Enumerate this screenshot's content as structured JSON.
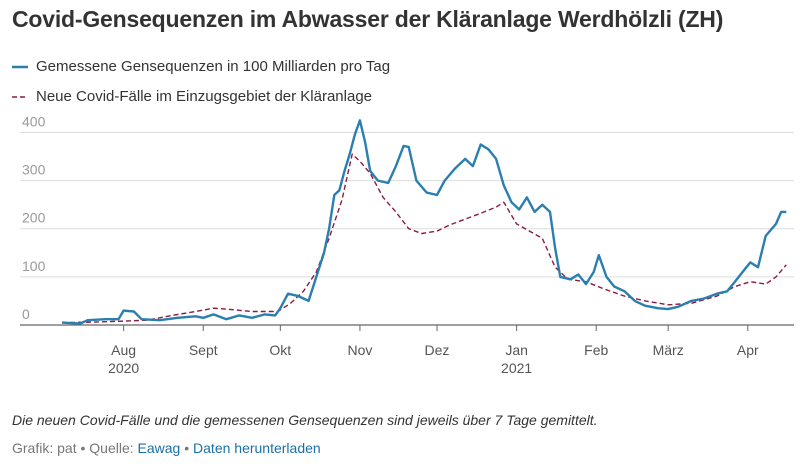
{
  "header": {
    "title": "Covid-Gensequenzen im Abwasser der Kläranlage Werdhölzli (ZH)"
  },
  "legend": [
    {
      "label": "Gemessene Gensequenzen in 100 Milliarden pro Tag",
      "color": "#2a7fb0",
      "style": "solid"
    },
    {
      "label": "Neue Covid-Fälle im Einzugsgebiet der Kläranlage",
      "color": "#8b1c3f",
      "style": "dashed"
    }
  ],
  "footer": {
    "note": "Die neuen Covid-Fälle und die gemessenen Gensequenzen sind jeweils über 7 Tage gemittelt.",
    "credit": "Grafik: pat",
    "source_label": "Quelle:",
    "source_name": "Eawag",
    "download_label": "Daten herunterladen",
    "separator": "•"
  },
  "chart_data": {
    "type": "line",
    "x_axis": "date",
    "xlim": [
      "2020-07-08",
      "2021-04-19"
    ],
    "ylim": [
      0,
      430
    ],
    "y_ticks": [
      0,
      100,
      200,
      300,
      400
    ],
    "x_ticks": [
      {
        "date": "2020-08-01",
        "label": "Aug",
        "sublabel": "2020"
      },
      {
        "date": "2020-09-01",
        "label": "Sept",
        "sublabel": ""
      },
      {
        "date": "2020-10-01",
        "label": "Okt",
        "sublabel": ""
      },
      {
        "date": "2020-11-01",
        "label": "Nov",
        "sublabel": ""
      },
      {
        "date": "2020-12-01",
        "label": "Dez",
        "sublabel": ""
      },
      {
        "date": "2021-01-01",
        "label": "Jan",
        "sublabel": "2021"
      },
      {
        "date": "2021-02-01",
        "label": "Feb",
        "sublabel": ""
      },
      {
        "date": "2021-03-01",
        "label": "März",
        "sublabel": ""
      },
      {
        "date": "2021-04-01",
        "label": "Apr",
        "sublabel": ""
      }
    ],
    "grid": "horizontal",
    "series": [
      {
        "name": "Gemessene Gensequenzen in 100 Milliarden pro Tag",
        "color": "#2a7fb0",
        "style": "solid",
        "points": [
          [
            "2020-07-08",
            5
          ],
          [
            "2020-07-15",
            3
          ],
          [
            "2020-07-18",
            10
          ],
          [
            "2020-07-25",
            12
          ],
          [
            "2020-07-30",
            12
          ],
          [
            "2020-08-01",
            30
          ],
          [
            "2020-08-05",
            28
          ],
          [
            "2020-08-08",
            12
          ],
          [
            "2020-08-15",
            10
          ],
          [
            "2020-08-22",
            15
          ],
          [
            "2020-08-29",
            18
          ],
          [
            "2020-09-01",
            15
          ],
          [
            "2020-09-05",
            22
          ],
          [
            "2020-09-10",
            12
          ],
          [
            "2020-09-15",
            20
          ],
          [
            "2020-09-20",
            15
          ],
          [
            "2020-09-25",
            22
          ],
          [
            "2020-09-29",
            20
          ],
          [
            "2020-10-01",
            35
          ],
          [
            "2020-10-04",
            65
          ],
          [
            "2020-10-08",
            60
          ],
          [
            "2020-10-12",
            50
          ],
          [
            "2020-10-15",
            100
          ],
          [
            "2020-10-18",
            150
          ],
          [
            "2020-10-20",
            200
          ],
          [
            "2020-10-22",
            270
          ],
          [
            "2020-10-24",
            280
          ],
          [
            "2020-10-26",
            320
          ],
          [
            "2020-10-28",
            355
          ],
          [
            "2020-10-30",
            395
          ],
          [
            "2020-11-01",
            425
          ],
          [
            "2020-11-03",
            380
          ],
          [
            "2020-11-05",
            320
          ],
          [
            "2020-11-08",
            300
          ],
          [
            "2020-11-12",
            295
          ],
          [
            "2020-11-15",
            330
          ],
          [
            "2020-11-18",
            372
          ],
          [
            "2020-11-20",
            370
          ],
          [
            "2020-11-23",
            300
          ],
          [
            "2020-11-27",
            275
          ],
          [
            "2020-12-01",
            270
          ],
          [
            "2020-12-04",
            300
          ],
          [
            "2020-12-08",
            325
          ],
          [
            "2020-12-12",
            345
          ],
          [
            "2020-12-15",
            330
          ],
          [
            "2020-12-18",
            375
          ],
          [
            "2020-12-21",
            365
          ],
          [
            "2020-12-24",
            345
          ],
          [
            "2020-12-27",
            290
          ],
          [
            "2020-12-30",
            255
          ],
          [
            "2021-01-02",
            240
          ],
          [
            "2021-01-05",
            265
          ],
          [
            "2021-01-08",
            235
          ],
          [
            "2021-01-11",
            250
          ],
          [
            "2021-01-14",
            235
          ],
          [
            "2021-01-16",
            160
          ],
          [
            "2021-01-18",
            100
          ],
          [
            "2021-01-22",
            95
          ],
          [
            "2021-01-25",
            105
          ],
          [
            "2021-01-28",
            85
          ],
          [
            "2021-01-31",
            110
          ],
          [
            "2021-02-02",
            145
          ],
          [
            "2021-02-05",
            100
          ],
          [
            "2021-02-08",
            80
          ],
          [
            "2021-02-12",
            70
          ],
          [
            "2021-02-16",
            50
          ],
          [
            "2021-02-20",
            40
          ],
          [
            "2021-02-25",
            35
          ],
          [
            "2021-03-01",
            33
          ],
          [
            "2021-03-05",
            38
          ],
          [
            "2021-03-10",
            50
          ],
          [
            "2021-03-15",
            55
          ],
          [
            "2021-03-20",
            65
          ],
          [
            "2021-03-24",
            70
          ],
          [
            "2021-03-27",
            90
          ],
          [
            "2021-03-30",
            110
          ],
          [
            "2021-04-02",
            130
          ],
          [
            "2021-04-05",
            120
          ],
          [
            "2021-04-08",
            185
          ],
          [
            "2021-04-12",
            210
          ],
          [
            "2021-04-14",
            235
          ],
          [
            "2021-04-16",
            235
          ]
        ]
      },
      {
        "name": "Neue Covid-Fälle im Einzugsgebiet der Kläranlage",
        "color": "#8b1c3f",
        "style": "dashed",
        "points": [
          [
            "2020-07-08",
            5
          ],
          [
            "2020-07-20",
            6
          ],
          [
            "2020-08-01",
            8
          ],
          [
            "2020-08-10",
            10
          ],
          [
            "2020-08-20",
            20
          ],
          [
            "2020-08-31",
            30
          ],
          [
            "2020-09-05",
            35
          ],
          [
            "2020-09-10",
            33
          ],
          [
            "2020-09-20",
            28
          ],
          [
            "2020-09-30",
            28
          ],
          [
            "2020-10-05",
            45
          ],
          [
            "2020-10-10",
            70
          ],
          [
            "2020-10-15",
            110
          ],
          [
            "2020-10-20",
            180
          ],
          [
            "2020-10-25",
            260
          ],
          [
            "2020-10-29",
            355
          ],
          [
            "2020-11-01",
            340
          ],
          [
            "2020-11-05",
            315
          ],
          [
            "2020-11-10",
            265
          ],
          [
            "2020-11-15",
            235
          ],
          [
            "2020-11-20",
            200
          ],
          [
            "2020-11-25",
            190
          ],
          [
            "2020-12-01",
            195
          ],
          [
            "2020-12-06",
            208
          ],
          [
            "2020-12-12",
            220
          ],
          [
            "2020-12-18",
            232
          ],
          [
            "2020-12-24",
            245
          ],
          [
            "2020-12-27",
            255
          ],
          [
            "2021-01-01",
            210
          ],
          [
            "2021-01-06",
            195
          ],
          [
            "2021-01-11",
            180
          ],
          [
            "2021-01-16",
            120
          ],
          [
            "2021-01-21",
            95
          ],
          [
            "2021-01-28",
            90
          ],
          [
            "2021-02-04",
            75
          ],
          [
            "2021-02-12",
            60
          ],
          [
            "2021-02-20",
            50
          ],
          [
            "2021-03-01",
            42
          ],
          [
            "2021-03-10",
            45
          ],
          [
            "2021-03-20",
            60
          ],
          [
            "2021-03-27",
            80
          ],
          [
            "2021-04-02",
            90
          ],
          [
            "2021-04-08",
            85
          ],
          [
            "2021-04-12",
            100
          ],
          [
            "2021-04-16",
            125
          ]
        ]
      }
    ]
  }
}
